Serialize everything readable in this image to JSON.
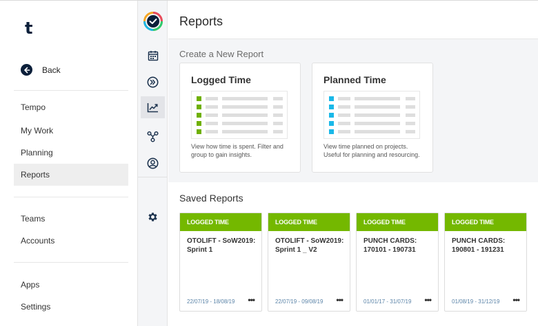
{
  "app": {
    "logo_text": "t"
  },
  "sidebar": {
    "back_label": "Back",
    "items": [
      {
        "label": "Tempo"
      },
      {
        "label": "My Work"
      },
      {
        "label": "Planning"
      },
      {
        "label": "Reports",
        "active": true
      },
      {
        "label": "Teams"
      },
      {
        "label": "Accounts"
      },
      {
        "label": "Apps"
      },
      {
        "label": "Settings"
      }
    ]
  },
  "rail": {
    "icons": [
      "app-logo-icon",
      "calendar-icon",
      "chevrons-right-icon",
      "chart-icon",
      "hierarchy-icon",
      "user-circle-icon",
      "gear-icon"
    ],
    "active": "chart-icon"
  },
  "main": {
    "title": "Reports",
    "create_title": "Create a New Report",
    "report_types": [
      {
        "title": "Logged Time",
        "description": "View how time is spent. Filter and group to gain insights.",
        "accent": "#6fb000"
      },
      {
        "title": "Planned Time",
        "description": "View time planned on projects. Useful for planning and resourcing.",
        "accent": "#1ab8e8"
      }
    ],
    "saved_title": "Saved Reports",
    "saved_reports": [
      {
        "type": "LOGGED TIME",
        "name": "OTOLIFT - SoW2019: Sprint 1",
        "dates": "22/07/19 - 18/08/19",
        "more": "•••"
      },
      {
        "type": "LOGGED TIME",
        "name": "OTOLIFT - SoW2019: Sprint 1 _ V2",
        "dates": "22/07/19 - 09/08/19",
        "more": "•••"
      },
      {
        "type": "LOGGED TIME",
        "name": "PUNCH CARDS: 170101 - 190731",
        "dates": "01/01/17 - 31/07/19",
        "more": "•••"
      },
      {
        "type": "LOGGED TIME",
        "name": "PUNCH CARDS: 190801 - 191231",
        "dates": "01/08/19 - 31/12/19",
        "more": "•••"
      }
    ]
  },
  "colors": {
    "brand_dark": "#0b1f3a",
    "saved_header_green": "#74b800",
    "logged_accent": "#6fb000",
    "planned_accent": "#1ab8e8",
    "date_text": "#5b84a8"
  }
}
